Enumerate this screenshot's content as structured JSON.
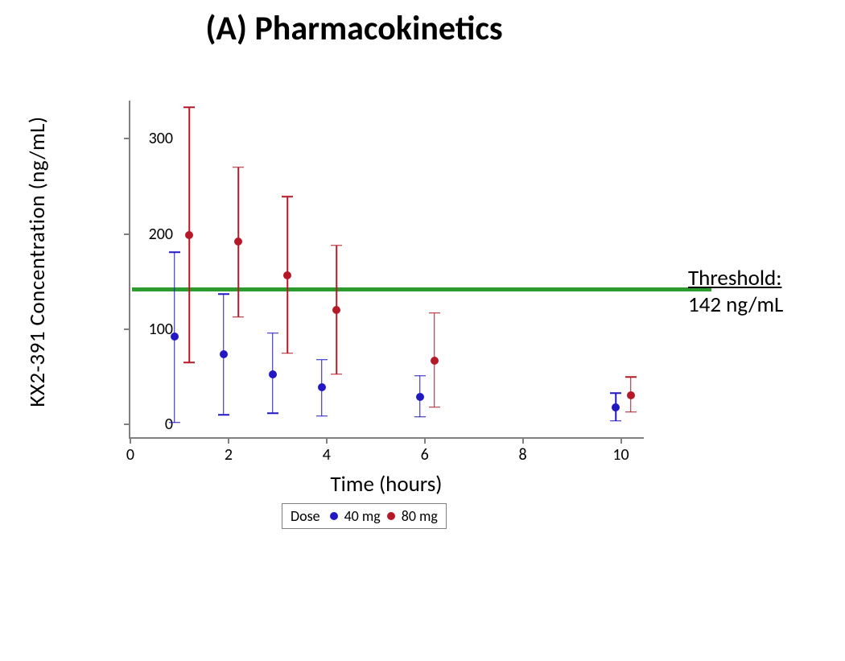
{
  "title": "(A)  Pharmacokinetics",
  "y_axis_title": "KX2-391  Concentration  (ng/mL)",
  "x_axis_title": "Time  (hours)",
  "chart": {
    "type": "error-bar-scatter",
    "background_color": "#ffffff",
    "axis_color": "#808080",
    "xlim": [
      0,
      10.5
    ],
    "ylim": [
      -15,
      340
    ],
    "x_ticks": [
      0,
      2,
      4,
      6,
      8,
      10
    ],
    "y_ticks": [
      0,
      100,
      200,
      300
    ],
    "x_offset": {
      "dose40": -0.1,
      "dose80": 0.2
    },
    "marker_size": 10,
    "cap_width": 14,
    "whisker_width": 1.5,
    "title_fontsize": 42,
    "axis_title_fontsize": 27,
    "tick_label_fontsize": 20,
    "threshold": {
      "value": 142,
      "color": "#2e9b2e",
      "line_width": 5,
      "label_heading": "Threshold:",
      "label_value": "142 ng/mL",
      "label_fontsize": 27
    },
    "series": [
      {
        "name": "40 mg",
        "color": "#2118c4",
        "points": [
          {
            "x": 1,
            "y": 92,
            "lo": 2,
            "hi": 181
          },
          {
            "x": 2,
            "y": 74,
            "lo": 10,
            "hi": 137
          },
          {
            "x": 3,
            "y": 53,
            "lo": 12,
            "hi": 96
          },
          {
            "x": 4,
            "y": 39,
            "lo": 9,
            "hi": 68
          },
          {
            "x": 6,
            "y": 29,
            "lo": 8,
            "hi": 51
          },
          {
            "x": 10,
            "y": 18,
            "lo": 4,
            "hi": 33
          }
        ]
      },
      {
        "name": "80 mg",
        "color": "#b51826",
        "points": [
          {
            "x": 1,
            "y": 199,
            "lo": 65,
            "hi": 333
          },
          {
            "x": 2,
            "y": 192,
            "lo": 113,
            "hi": 270
          },
          {
            "x": 3,
            "y": 157,
            "lo": 75,
            "hi": 239
          },
          {
            "x": 4,
            "y": 120,
            "lo": 53,
            "hi": 188
          },
          {
            "x": 6,
            "y": 67,
            "lo": 18,
            "hi": 117
          },
          {
            "x": 10,
            "y": 31,
            "lo": 13,
            "hi": 50
          }
        ]
      }
    ],
    "legend": {
      "title": "Dose",
      "items": [
        {
          "label": "40 mg",
          "color": "#2118c4"
        },
        {
          "label": "80 mg",
          "color": "#b51826"
        }
      ]
    }
  }
}
